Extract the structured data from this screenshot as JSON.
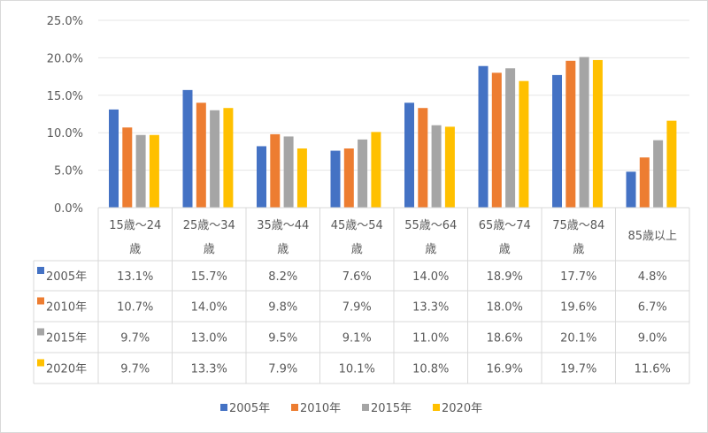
{
  "chart_data": {
    "type": "bar",
    "title": "",
    "xlabel": "",
    "ylabel": "",
    "ylim": [
      0,
      25
    ],
    "y_ticks": [
      "0.0%",
      "5.0%",
      "10.0%",
      "15.0%",
      "20.0%",
      "25.0%"
    ],
    "grid": true,
    "legend_position": "bottom",
    "data_table": true,
    "categories": [
      "15歳～24歳",
      "25歳～34歳",
      "35歳～44歳",
      "45歳～54歳",
      "55歳～64歳",
      "65歳～74歳",
      "75歳～84歳",
      "85歳以上"
    ],
    "series": [
      {
        "name": "2005年",
        "color": "#4472C4",
        "values": [
          13.1,
          15.7,
          8.2,
          7.6,
          14.0,
          18.9,
          17.7,
          4.8
        ]
      },
      {
        "name": "2010年",
        "color": "#ED7D31",
        "values": [
          10.7,
          14.0,
          9.8,
          7.9,
          13.3,
          18.0,
          19.6,
          6.7
        ]
      },
      {
        "name": "2015年",
        "color": "#A5A5A5",
        "values": [
          9.7,
          13.0,
          9.5,
          9.1,
          11.0,
          18.6,
          20.1,
          9.0
        ]
      },
      {
        "name": "2020年",
        "color": "#FFC000",
        "values": [
          9.7,
          13.3,
          7.9,
          10.1,
          10.8,
          16.9,
          19.7,
          11.6
        ]
      }
    ]
  }
}
